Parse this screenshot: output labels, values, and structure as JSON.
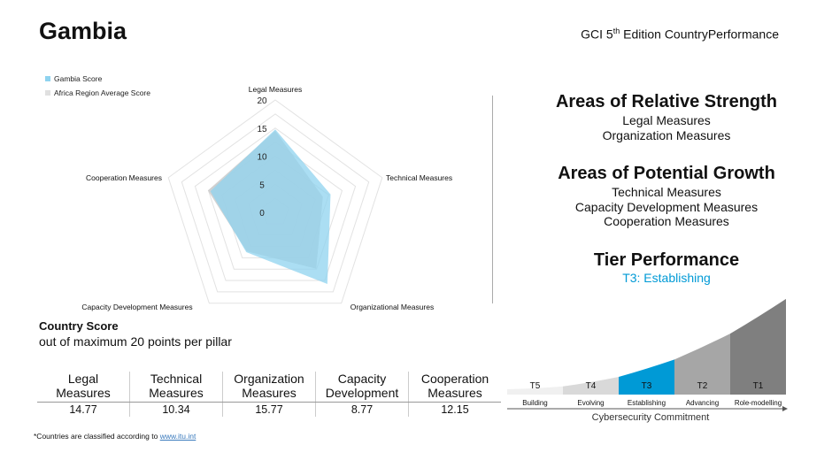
{
  "header": {
    "title": "Gambia",
    "subtitle_prefix": "GCI 5",
    "subtitle_sup": "th",
    "subtitle_suffix": " Edition CountryPerformance"
  },
  "chart_data": {
    "type": "radar",
    "categories": [
      "Legal Measures",
      "Technical Measures",
      "Organizational Measures",
      "Capacity Development Measures",
      "Cooperation Measures"
    ],
    "ticks": [
      0,
      5,
      10,
      15,
      20
    ],
    "range": [
      0,
      20
    ],
    "series": [
      {
        "name": "Gambia Score",
        "values": [
          14.77,
          10.34,
          15.77,
          8.77,
          12.15
        ],
        "color": "#8fd3ef"
      },
      {
        "name": "Africa Region Average Score",
        "values": [
          14.5,
          8.9,
          12.4,
          8.6,
          12.6
        ],
        "color": "#c8c8c8"
      }
    ],
    "legend": "top-left"
  },
  "strength": {
    "title": "Areas of Relative Strength",
    "items": [
      "Legal Measures",
      "Organization Measures"
    ]
  },
  "growth": {
    "title": "Areas of Potential Growth",
    "items": [
      "Technical Measures",
      "Capacity Development Measures",
      "Cooperation Measures"
    ]
  },
  "tier": {
    "title": "Tier Performance",
    "value": "T3: Establishing",
    "accent": "#009ad6",
    "tiers": [
      {
        "code": "T5",
        "label": "Building",
        "color": "#f0f0f0"
      },
      {
        "code": "T4",
        "label": "Evolving",
        "color": "#d9d9d9"
      },
      {
        "code": "T3",
        "label": "Establishing",
        "color": "#009ad6"
      },
      {
        "code": "T2",
        "label": "Advancing",
        "color": "#a6a6a6"
      },
      {
        "code": "T1",
        "label": "Role-modelling",
        "color": "#7f7f7f"
      }
    ],
    "axis_label": "Cybersecurity Commitment"
  },
  "score": {
    "title": "Country Score",
    "subtitle": "out of maximum 20 points per pillar",
    "headers": [
      [
        "Legal",
        "Measures"
      ],
      [
        "Technical",
        "Measures"
      ],
      [
        "Organization",
        "Measures"
      ],
      [
        "Capacity",
        "Development"
      ],
      [
        "Cooperation",
        "Measures"
      ]
    ],
    "values": [
      "14.77",
      "10.34",
      "15.77",
      "8.77",
      "12.15"
    ]
  },
  "footnote": {
    "text": "*Countries are classified according to ",
    "link": "www.itu.int"
  }
}
